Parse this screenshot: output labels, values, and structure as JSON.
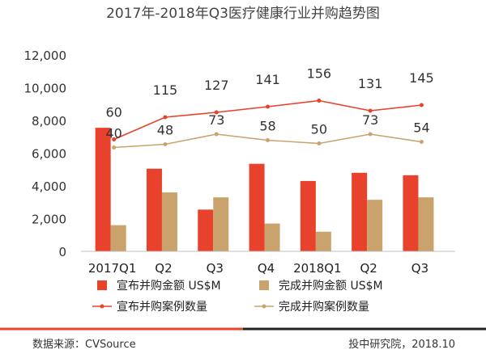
{
  "chart_data": {
    "type": "bar",
    "title": "2017年-2018年Q3医疗健康行业并购趋势图",
    "categories": [
      "2017Q1",
      "Q2",
      "Q3",
      "Q4",
      "2018Q1",
      "Q2",
      "Q3"
    ],
    "ylim": [
      0,
      12000
    ],
    "yticks": [
      "0",
      "2,000",
      "4,000",
      "6,000",
      "8,000",
      "10,000",
      "12,000"
    ],
    "series": [
      {
        "name": "宣布并购金额 US$M",
        "kind": "bar",
        "color": "#e8412c",
        "values": [
          7550,
          5050,
          2550,
          5350,
          4300,
          4800,
          4650
        ]
      },
      {
        "name": "完成并购金额 US$M",
        "kind": "bar",
        "color": "#c9a36b",
        "values": [
          1600,
          3600,
          3300,
          1700,
          1200,
          3150,
          3300
        ]
      },
      {
        "name": "宣布并购案例数量",
        "kind": "line",
        "color": "#e8412c",
        "values": [
          60,
          115,
          127,
          141,
          156,
          131,
          145
        ],
        "labels": [
          "60",
          "115",
          "127",
          "141",
          "156",
          "131",
          "145"
        ]
      },
      {
        "name": "完成并购案例数量",
        "kind": "line",
        "color": "#c9a36b",
        "values": [
          40,
          48,
          73,
          58,
          50,
          73,
          54
        ],
        "labels": [
          "40",
          "48",
          "73",
          "58",
          "50",
          "73",
          "54"
        ]
      }
    ],
    "grid": false,
    "legend": "bottom"
  },
  "footer": {
    "source": "数据来源：CVSource",
    "credit": "投中研究院，2018.10"
  },
  "colors": {
    "accent": "#e8412c",
    "secondary": "#c9a36b",
    "rule_dark": "#222222"
  }
}
